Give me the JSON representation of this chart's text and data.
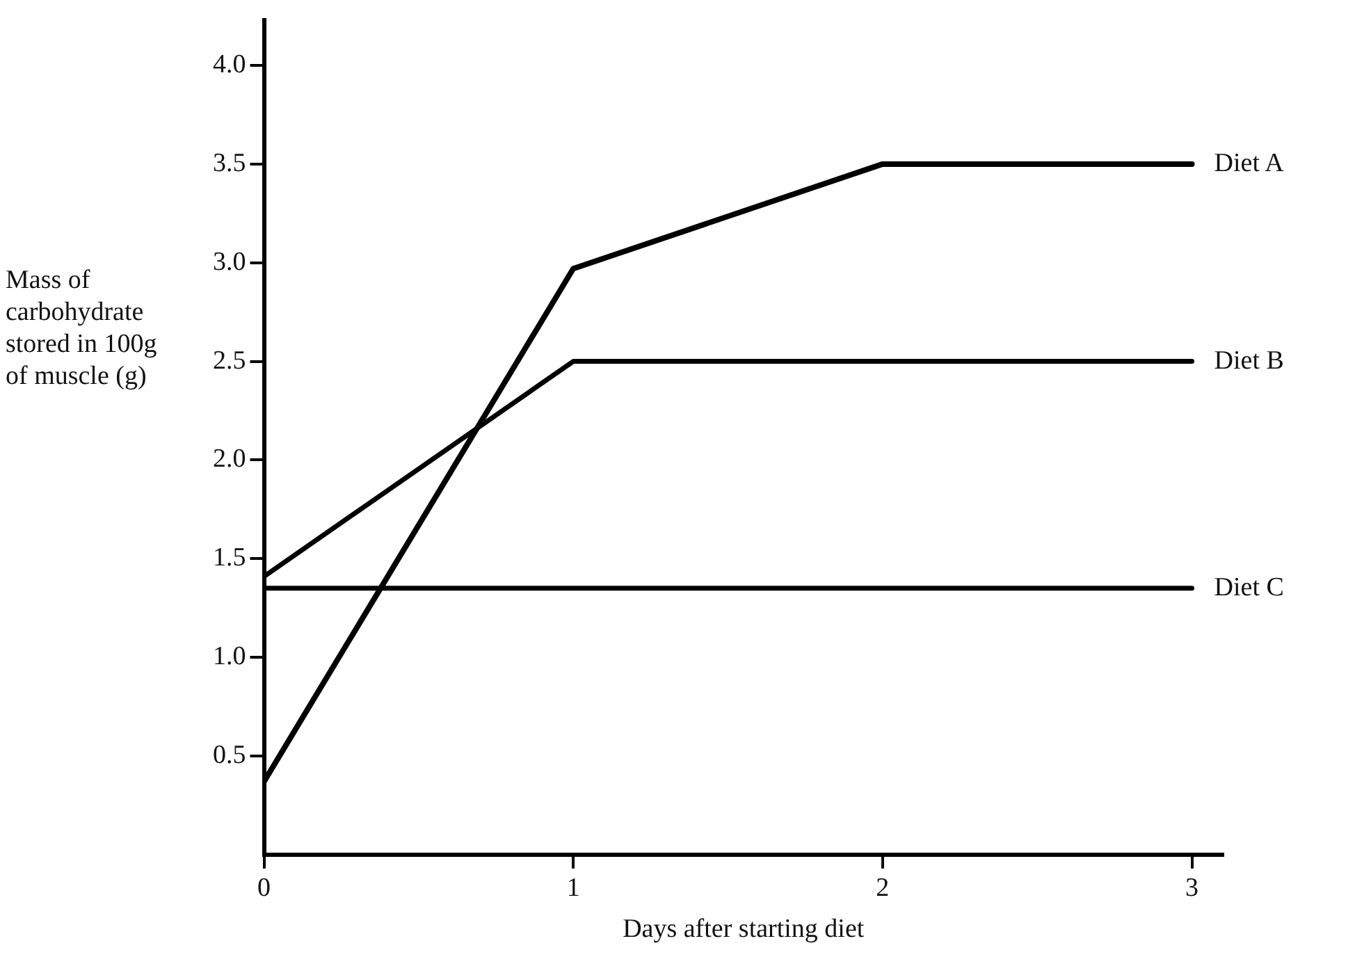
{
  "chart_data": {
    "type": "line",
    "xlabel": "Days after starting diet",
    "ylabel": "Mass of\ncarbohydrate\nstored in 100g\nof muscle (g)",
    "x": [
      0,
      1,
      2,
      3
    ],
    "series": [
      {
        "name": "Diet A",
        "color": "#000000",
        "values": [
          0.37,
          2.97,
          3.5,
          3.5
        ]
      },
      {
        "name": "Diet B",
        "color": "#000000",
        "values": [
          1.41,
          2.5,
          2.5,
          2.5
        ]
      },
      {
        "name": "Diet C",
        "color": "#000000",
        "values": [
          1.35,
          1.35,
          1.35,
          1.35
        ]
      }
    ],
    "xlim": [
      0,
      3.1
    ],
    "xticks": [
      0,
      1,
      2,
      3
    ],
    "ylim": [
      0,
      4.23
    ],
    "yticks": [
      {
        "value": 0.5,
        "label": "0.5"
      },
      {
        "value": 1,
        "label": "1.0"
      },
      {
        "value": 1.5,
        "label": "1.5"
      },
      {
        "value": 2,
        "label": "2.0"
      },
      {
        "value": 2.5,
        "label": "2.5"
      },
      {
        "value": 3,
        "label": "3.0"
      },
      {
        "value": 3.5,
        "label": "3.5"
      },
      {
        "value": 4,
        "label": "4.0"
      }
    ],
    "grid": false,
    "legend": false,
    "marker": "none",
    "line_style": "solid"
  }
}
